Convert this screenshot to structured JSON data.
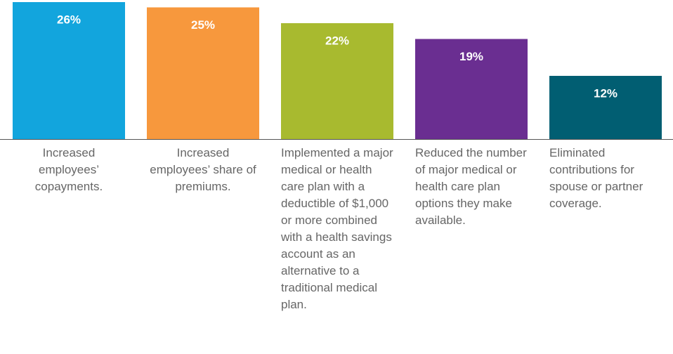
{
  "chart_data": {
    "type": "bar",
    "categories": [
      "Increased employees’ copayments.",
      "Increased employees’ share of premiums.",
      "Implemented a major medical or health care plan with a deductible of $1,000 or more combined with a health savings account as an alternative to a traditional medical plan.",
      "Reduced the number of major medical or health care plan options they make available.",
      "Eliminated contributions for spouse or partner coverage."
    ],
    "values": [
      26,
      25,
      22,
      19,
      12
    ],
    "value_labels": [
      "26%",
      "25%",
      "22%",
      "19%",
      "12%"
    ],
    "colors": [
      "#12a5dd",
      "#f7983d",
      "#a8ba2f",
      "#6a2e91",
      "#015e72"
    ],
    "ylim": [
      0,
      26
    ]
  }
}
